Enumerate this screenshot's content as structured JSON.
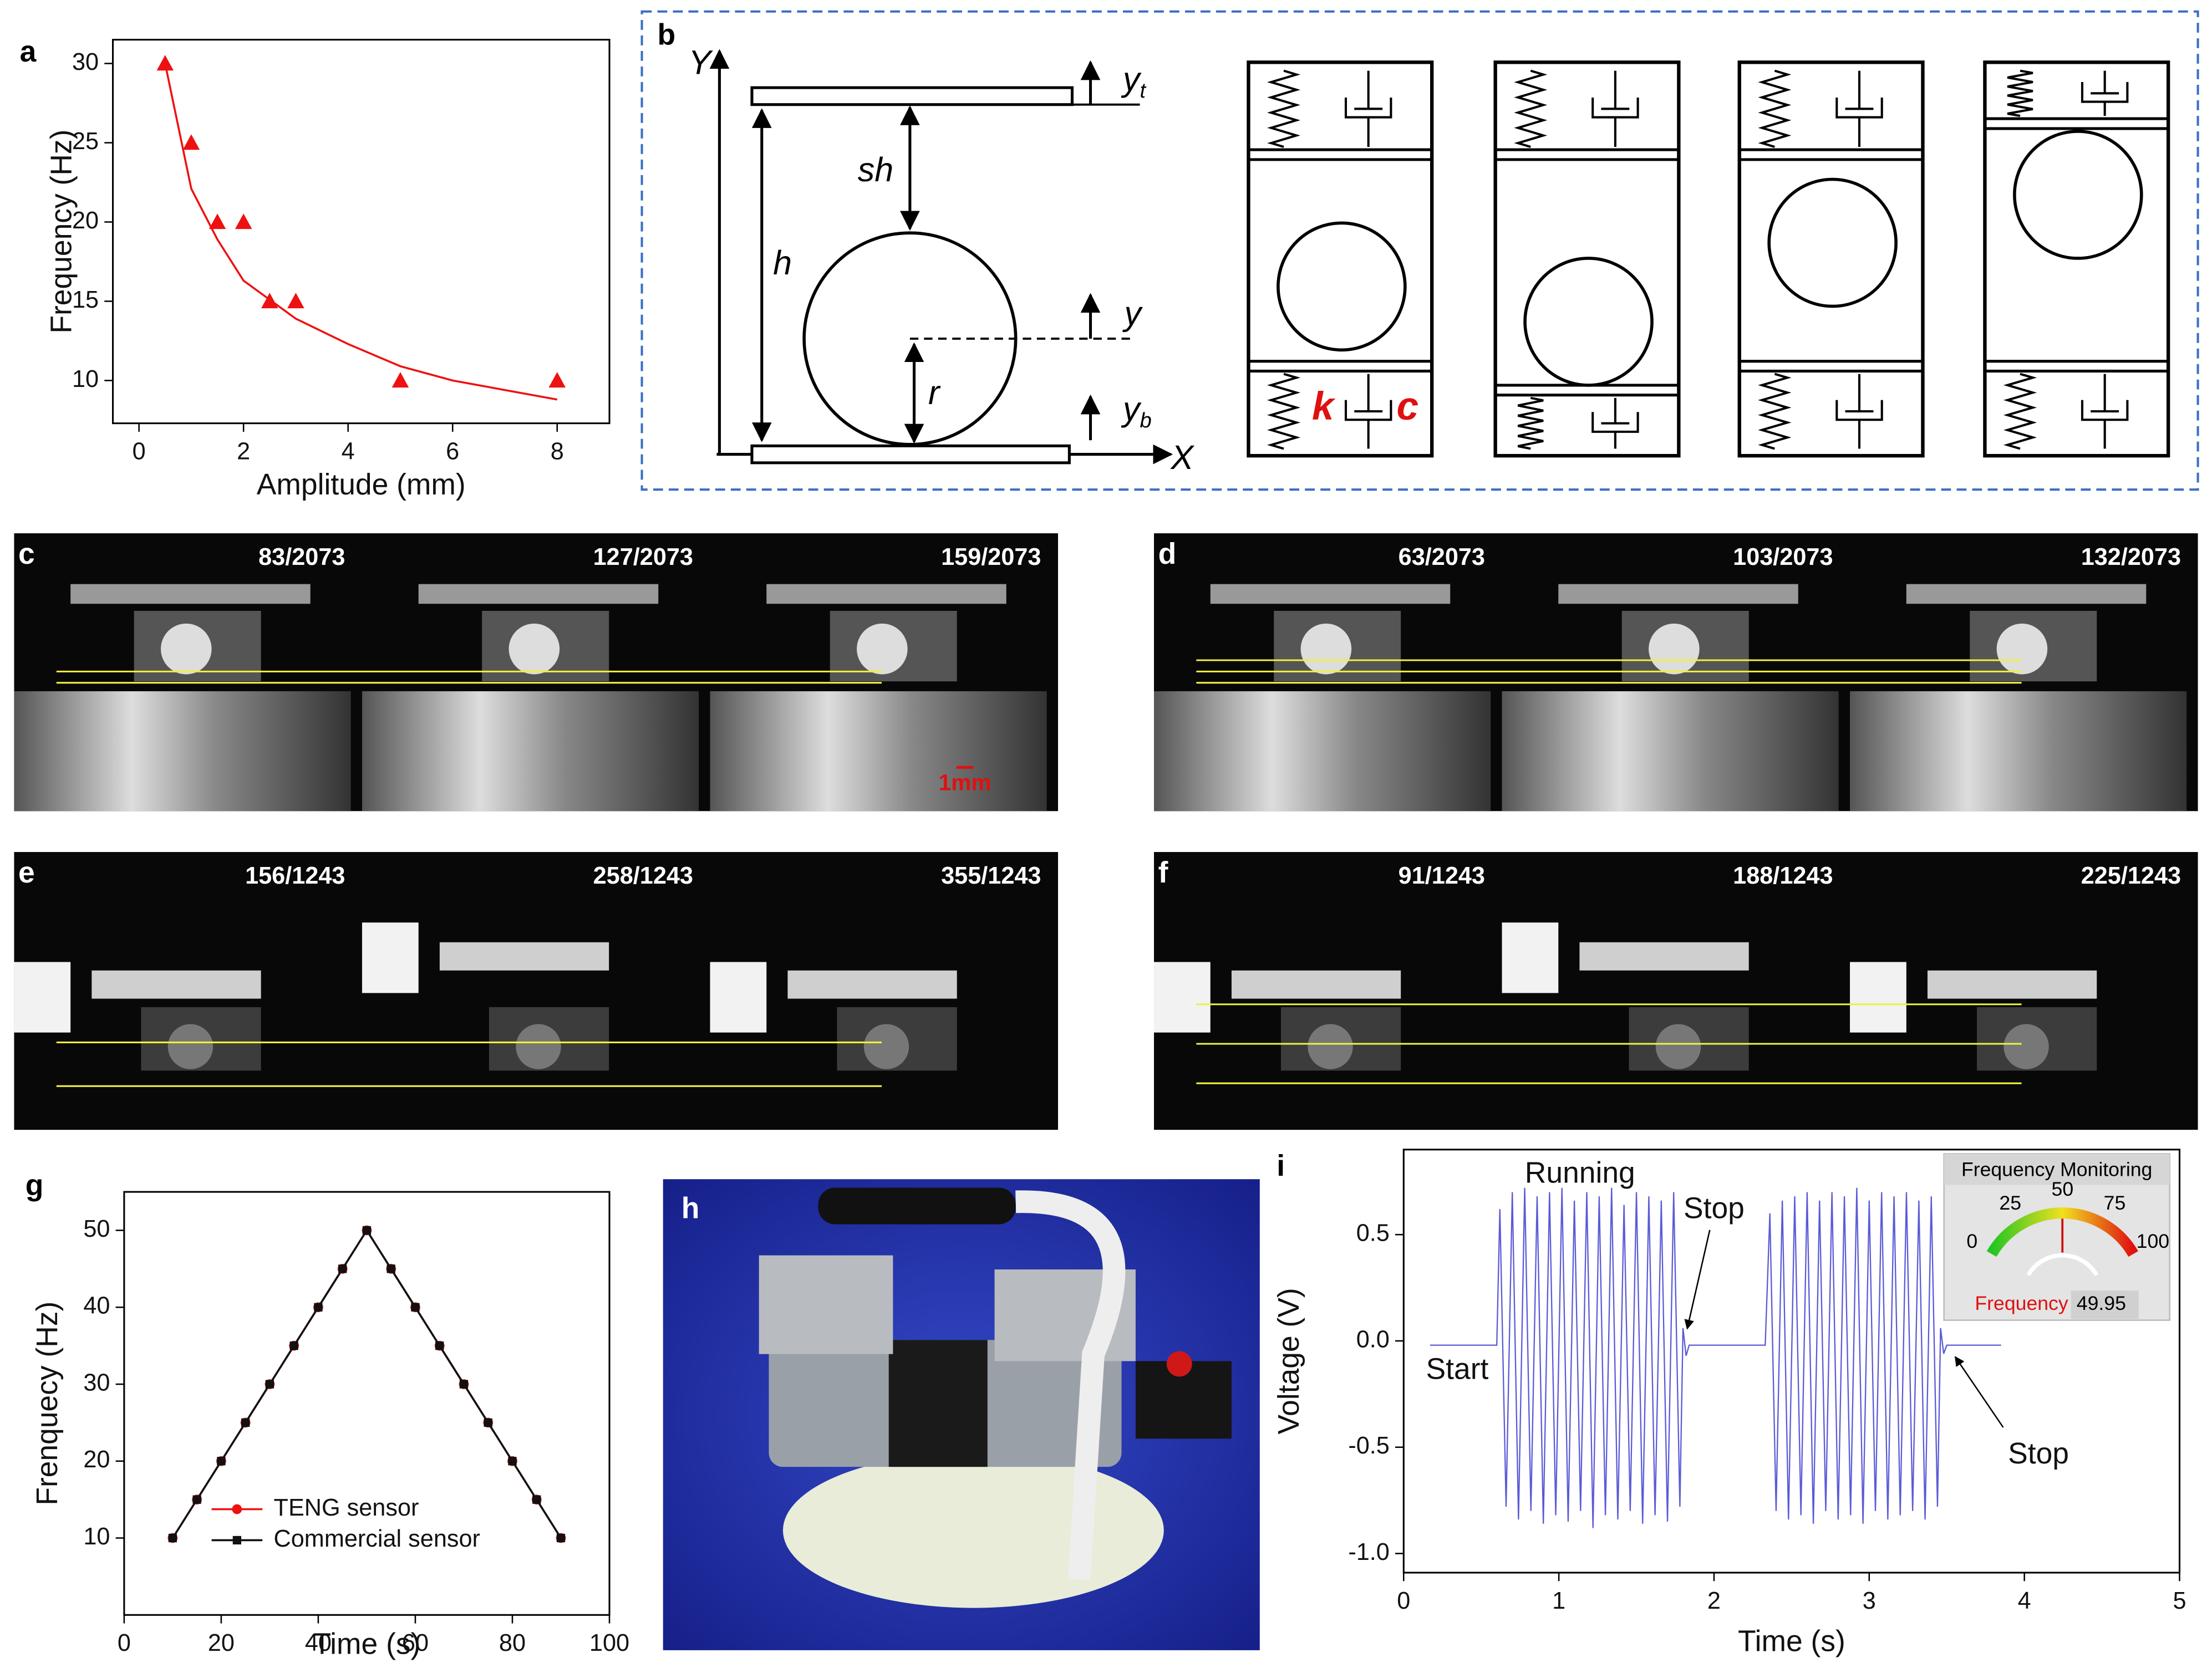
{
  "chart_data": [
    {
      "type": "scatter",
      "panel": "a",
      "xlabel": "Amplitude (mm)",
      "ylabel": "Frequency (Hz)",
      "x": [
        0.5,
        1,
        1.5,
        2,
        2.5,
        3,
        5,
        8
      ],
      "series": [
        {
          "color": "#ee1111",
          "marker": "triangle",
          "line": false,
          "values": [
            30,
            25,
            20,
            20,
            15,
            15,
            10,
            10
          ]
        },
        {
          "color": "#ee1111",
          "marker": null,
          "line": true,
          "x": [
            0.5,
            1,
            1.5,
            2,
            3,
            4,
            5,
            6,
            7,
            8
          ],
          "values": [
            30,
            22.1,
            18.9,
            16.3,
            13.9,
            12.3,
            10.9,
            10.0,
            9.4,
            8.8
          ]
        }
      ],
      "xlim": [
        -0.5,
        9
      ],
      "xticks": [
        0,
        2,
        4,
        6,
        8
      ],
      "ylim": [
        7.3,
        31.5
      ],
      "yticks": [
        10,
        15,
        20,
        25,
        30
      ]
    },
    {
      "type": "line",
      "panel": "g",
      "xlabel": "Time (s)",
      "ylabel": "Frenquecy (Hz)",
      "x": [
        10,
        15,
        20,
        25,
        30,
        35,
        40,
        45,
        50,
        55,
        60,
        65,
        70,
        75,
        80,
        85,
        90
      ],
      "series": [
        {
          "name": "TENG sensor",
          "color": "#ee1111",
          "marker": "circle",
          "line": true,
          "values": [
            10,
            15,
            20,
            25,
            30,
            35,
            40,
            45,
            50,
            45,
            40,
            35,
            30,
            25,
            20,
            15,
            10
          ]
        },
        {
          "name": "Commercial sensor",
          "color": "#111111",
          "marker": "square",
          "line": true,
          "values": [
            10,
            15,
            20,
            25,
            30,
            35,
            40,
            45,
            50,
            45,
            40,
            35,
            30,
            25,
            20,
            15,
            10
          ]
        }
      ],
      "legend": "lower center",
      "xlim": [
        0,
        100
      ],
      "xticks": [
        0,
        20,
        40,
        60,
        80,
        100
      ],
      "ylim": [
        0,
        55
      ],
      "yticks": [
        10,
        20,
        30,
        40,
        50
      ]
    },
    {
      "type": "line",
      "panel": "i",
      "xlabel": "Time (s)",
      "ylabel": "Voltage (V)",
      "x": [
        0.17,
        0.6,
        0.62,
        0.66,
        0.7,
        0.74,
        0.78,
        0.82,
        0.86,
        0.9,
        0.94,
        0.98,
        1.02,
        1.06,
        1.1,
        1.14,
        1.18,
        1.22,
        1.26,
        1.3,
        1.34,
        1.38,
        1.42,
        1.46,
        1.5,
        1.54,
        1.58,
        1.62,
        1.66,
        1.7,
        1.74,
        1.78,
        1.8,
        1.82,
        1.84,
        2.33,
        2.36,
        2.4,
        2.44,
        2.48,
        2.52,
        2.56,
        2.6,
        2.64,
        2.68,
        2.72,
        2.76,
        2.8,
        2.84,
        2.88,
        2.92,
        2.96,
        3.0,
        3.04,
        3.08,
        3.12,
        3.16,
        3.2,
        3.24,
        3.28,
        3.32,
        3.36,
        3.4,
        3.44,
        3.46,
        3.48,
        3.5,
        3.85
      ],
      "series": [
        {
          "color": "#5a5ad8",
          "marker": null,
          "line": true,
          "values": [
            -0.02,
            -0.02,
            0.62,
            -0.78,
            0.7,
            -0.84,
            0.72,
            -0.8,
            0.68,
            -0.86,
            0.7,
            -0.82,
            0.72,
            -0.85,
            0.66,
            -0.8,
            0.7,
            -0.88,
            0.68,
            -0.82,
            0.72,
            -0.84,
            0.64,
            -0.8,
            0.7,
            -0.86,
            0.68,
            -0.82,
            0.66,
            -0.85,
            0.7,
            -0.78,
            0.06,
            -0.07,
            -0.02,
            -0.02,
            0.6,
            -0.8,
            0.66,
            -0.84,
            0.68,
            -0.82,
            0.7,
            -0.86,
            0.66,
            -0.8,
            0.7,
            -0.84,
            0.68,
            -0.82,
            0.72,
            -0.86,
            0.66,
            -0.8,
            0.7,
            -0.84,
            0.68,
            -0.82,
            0.7,
            -0.8,
            0.66,
            -0.84,
            0.68,
            -0.78,
            0.06,
            -0.06,
            -0.02,
            -0.02
          ]
        }
      ],
      "annotations": [
        "Running",
        "Stop",
        "Start",
        "Stop"
      ],
      "inset": {
        "title": "Frequency Monitoring",
        "ticks": [
          0,
          25,
          50,
          75,
          100
        ],
        "label": "Frequency",
        "value": 49.95
      },
      "xlim": [
        0,
        5
      ],
      "xticks": [
        0,
        1,
        2,
        3,
        4,
        5
      ],
      "ylim": [
        -1.09,
        0.9
      ],
      "yticks": [
        {
          "value": -1,
          "label": "-1.0"
        },
        -0.5,
        {
          "value": 0,
          "label": "0.0"
        },
        0.5
      ]
    }
  ],
  "panel_b": {
    "label": "b",
    "axis_y": "Y",
    "axis_x": "X",
    "yt": {
      "base": "y",
      "sub": "t"
    },
    "sh": "sh",
    "h": "h",
    "y": "y",
    "r": "r",
    "yb": {
      "base": "y",
      "sub": "b"
    },
    "k": "k",
    "c": "c"
  },
  "frames": [
    {
      "label": "c",
      "counters": [
        "83/2073",
        "127/2073",
        "159/2073"
      ],
      "scale_bar": "1mm"
    },
    {
      "label": "d",
      "counters": [
        "63/2073",
        "103/2073",
        "132/2073"
      ]
    },
    {
      "label": "e",
      "counters": [
        "156/1243",
        "258/1243",
        "355/1243"
      ]
    },
    {
      "label": "f",
      "counters": [
        "91/1243",
        "188/1243",
        "225/1243"
      ]
    }
  ],
  "photo": {
    "label": "h"
  }
}
